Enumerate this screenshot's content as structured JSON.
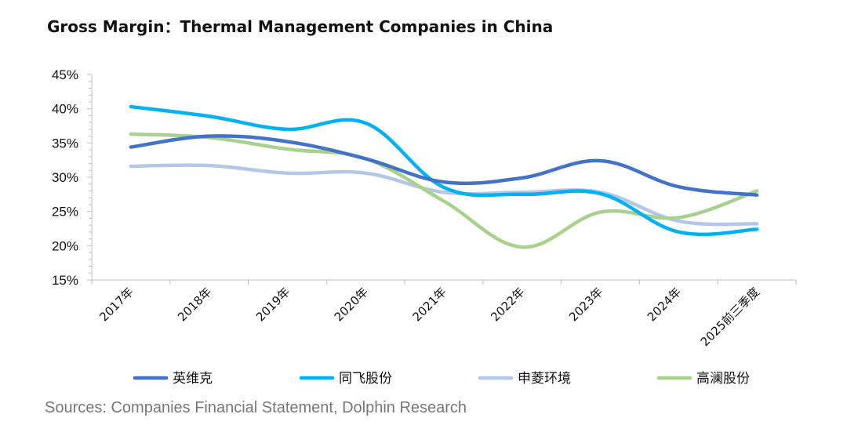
{
  "chart_data": {
    "type": "line",
    "title": "Gross Margin：Thermal Management Companies in China",
    "xlabel": "",
    "ylabel": "",
    "categories": [
      "2017年",
      "2018年",
      "2019年",
      "2020年",
      "2021年",
      "2022年",
      "2023年",
      "2024年",
      "2025前三季度"
    ],
    "y_ticks": [
      "15%",
      "20%",
      "25%",
      "30%",
      "35%",
      "40%",
      "45%"
    ],
    "ylim": [
      15,
      45
    ],
    "y_unit": "%",
    "grid": false,
    "legend_position": "bottom",
    "series": [
      {
        "name": "英维克",
        "color": "#4472C4",
        "values": [
          34.4,
          36.0,
          35.2,
          32.7,
          29.3,
          29.9,
          32.4,
          28.6,
          27.4
        ]
      },
      {
        "name": "同飞股份",
        "color": "#00B0F0",
        "values": [
          40.3,
          38.9,
          37.0,
          37.9,
          28.5,
          27.5,
          27.6,
          22.0,
          22.4
        ]
      },
      {
        "name": "申菱环境",
        "color": "#B4C7E7",
        "values": [
          31.6,
          31.7,
          30.6,
          30.6,
          27.8,
          27.8,
          27.8,
          23.6,
          23.2
        ]
      },
      {
        "name": "高澜股份",
        "color": "#A9D18E",
        "values": [
          36.3,
          35.8,
          34.1,
          32.7,
          26.5,
          19.8,
          24.9,
          24.1,
          28.0
        ]
      }
    ]
  },
  "source": "Sources: Companies Financial Statement, Dolphin Research"
}
